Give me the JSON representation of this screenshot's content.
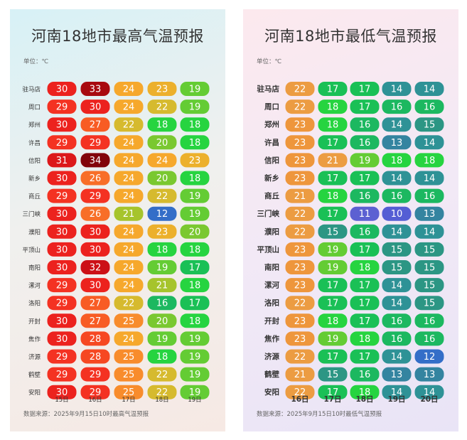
{
  "panels": [
    {
      "title": "河南18地市最高气温预报",
      "unit": "单位：℃",
      "source": "数据来源：2025年9月15日10时最高气温预报"
    },
    {
      "title": "河南18地市最低气温预报",
      "unit": "单位：℃",
      "source": "数据来源：2025年9月15日10时最低气温预报"
    }
  ],
  "chart_data": [
    {
      "type": "heatmap",
      "title": "河南18地市最高气温预报",
      "unit": "℃",
      "columns": [
        "15日",
        "16日",
        "17日",
        "18日",
        "19日"
      ],
      "rows": [
        "驻马店",
        "周口",
        "郑州",
        "许昌",
        "信阳",
        "新乡",
        "商丘",
        "三门峡",
        "濮阳",
        "平顶山",
        "南阳",
        "漯河",
        "洛阳",
        "开封",
        "焦作",
        "济源",
        "鹤壁",
        "安阳"
      ],
      "values": [
        [
          30,
          33,
          24,
          23,
          19
        ],
        [
          29,
          30,
          24,
          22,
          19
        ],
        [
          30,
          27,
          22,
          18,
          18
        ],
        [
          29,
          29,
          24,
          20,
          18
        ],
        [
          31,
          34,
          24,
          24,
          23
        ],
        [
          30,
          26,
          24,
          20,
          18
        ],
        [
          29,
          29,
          24,
          22,
          19
        ],
        [
          30,
          26,
          21,
          12,
          19
        ],
        [
          30,
          30,
          24,
          23,
          20
        ],
        [
          30,
          30,
          24,
          18,
          18
        ],
        [
          30,
          32,
          24,
          19,
          17
        ],
        [
          29,
          30,
          24,
          21,
          18
        ],
        [
          29,
          27,
          22,
          16,
          17
        ],
        [
          30,
          27,
          25,
          20,
          18
        ],
        [
          30,
          28,
          24,
          19,
          19
        ],
        [
          29,
          28,
          25,
          18,
          19
        ],
        [
          29,
          29,
          25,
          22,
          19
        ],
        [
          30,
          29,
          25,
          22,
          19
        ]
      ]
    },
    {
      "type": "heatmap",
      "title": "河南18地市最低气温预报",
      "unit": "℃",
      "columns": [
        "16日",
        "17日",
        "18日",
        "19日",
        "20日"
      ],
      "rows": [
        "驻马店",
        "周口",
        "郑州",
        "许昌",
        "信阳",
        "新乡",
        "商丘",
        "三门峡",
        "濮阳",
        "平顶山",
        "南阳",
        "漯河",
        "洛阳",
        "开封",
        "焦作",
        "济源",
        "鹤壁",
        "安阳"
      ],
      "values": [
        [
          22,
          17,
          17,
          14,
          14
        ],
        [
          22,
          18,
          17,
          16,
          16
        ],
        [
          23,
          18,
          16,
          14,
          15
        ],
        [
          23,
          17,
          16,
          13,
          14
        ],
        [
          23,
          21,
          19,
          18,
          18
        ],
        [
          23,
          17,
          17,
          14,
          14
        ],
        [
          21,
          18,
          16,
          16,
          16
        ],
        [
          22,
          17,
          11,
          10,
          13
        ],
        [
          22,
          15,
          16,
          14,
          14
        ],
        [
          23,
          19,
          17,
          15,
          15
        ],
        [
          23,
          19,
          18,
          15,
          15
        ],
        [
          23,
          17,
          17,
          14,
          15
        ],
        [
          22,
          17,
          17,
          14,
          15
        ],
        [
          23,
          18,
          17,
          16,
          16
        ],
        [
          23,
          19,
          18,
          16,
          16
        ],
        [
          22,
          17,
          17,
          14,
          12
        ],
        [
          21,
          15,
          16,
          13,
          13
        ],
        [
          22,
          17,
          18,
          14,
          14
        ]
      ]
    }
  ]
}
